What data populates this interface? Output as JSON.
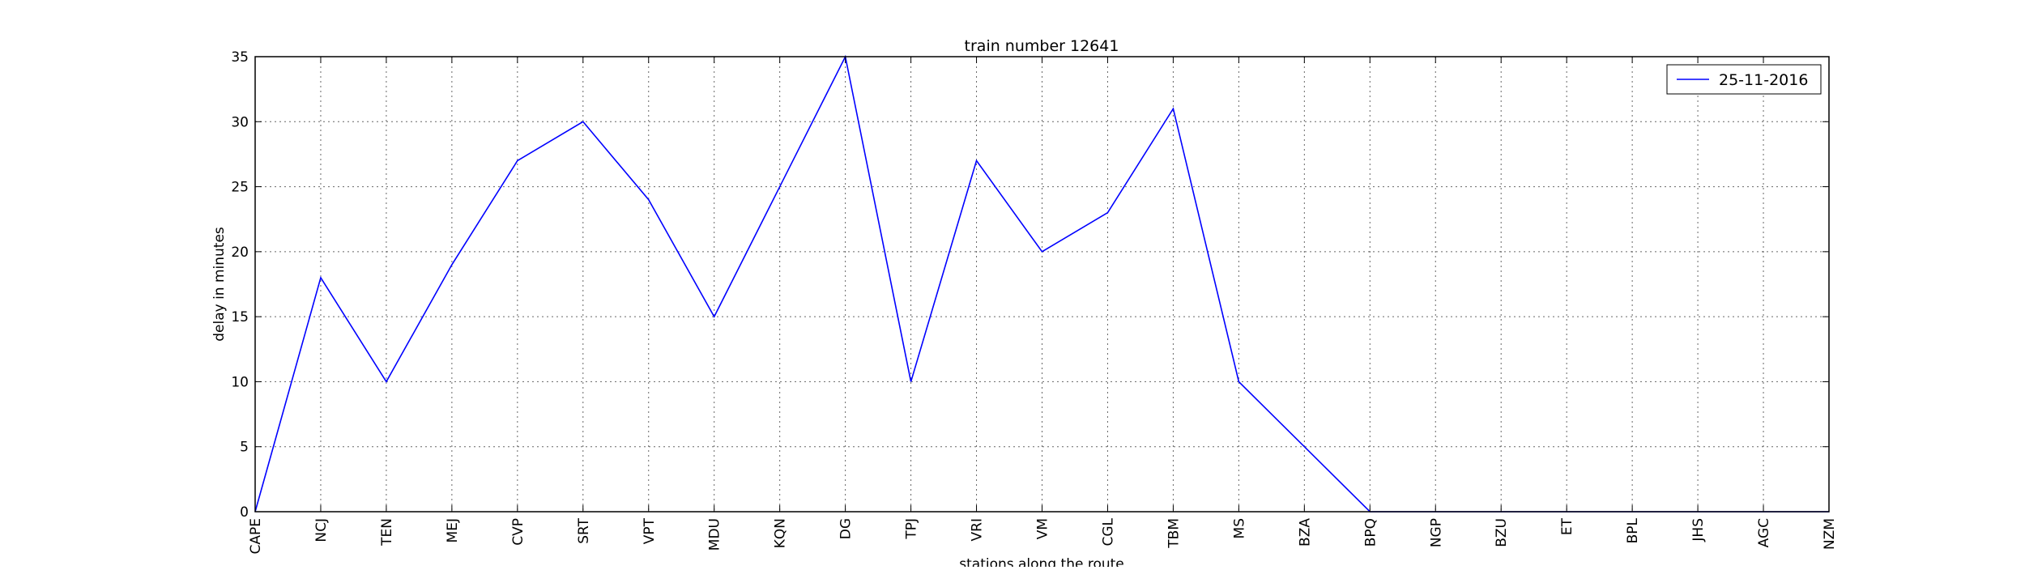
{
  "chart_data": {
    "type": "line",
    "title": "train number 12641",
    "xlabel": "stations along the route",
    "ylabel": "delay in minutes",
    "categories": [
      "CAPE",
      "NCJ",
      "TEN",
      "MEJ",
      "CVP",
      "SRT",
      "VPT",
      "MDU",
      "KQN",
      "DG",
      "TPJ",
      "VRI",
      "VM",
      "CGL",
      "TBM",
      "MS",
      "BZA",
      "BPQ",
      "NGP",
      "BZU",
      "ET",
      "BPL",
      "JHS",
      "AGC",
      "NZM"
    ],
    "ylim": [
      0,
      35
    ],
    "yticks": [
      0,
      5,
      10,
      15,
      20,
      25,
      30,
      35
    ],
    "grid": true,
    "legend_position": "top-right",
    "series": [
      {
        "name": "25-11-2016",
        "color": "#0000ff",
        "values": [
          0,
          18,
          10,
          19,
          27,
          30,
          24,
          15,
          25,
          35,
          10,
          27,
          20,
          23,
          31,
          10,
          5,
          0,
          0,
          0,
          0,
          0,
          0,
          0,
          0
        ]
      }
    ]
  }
}
